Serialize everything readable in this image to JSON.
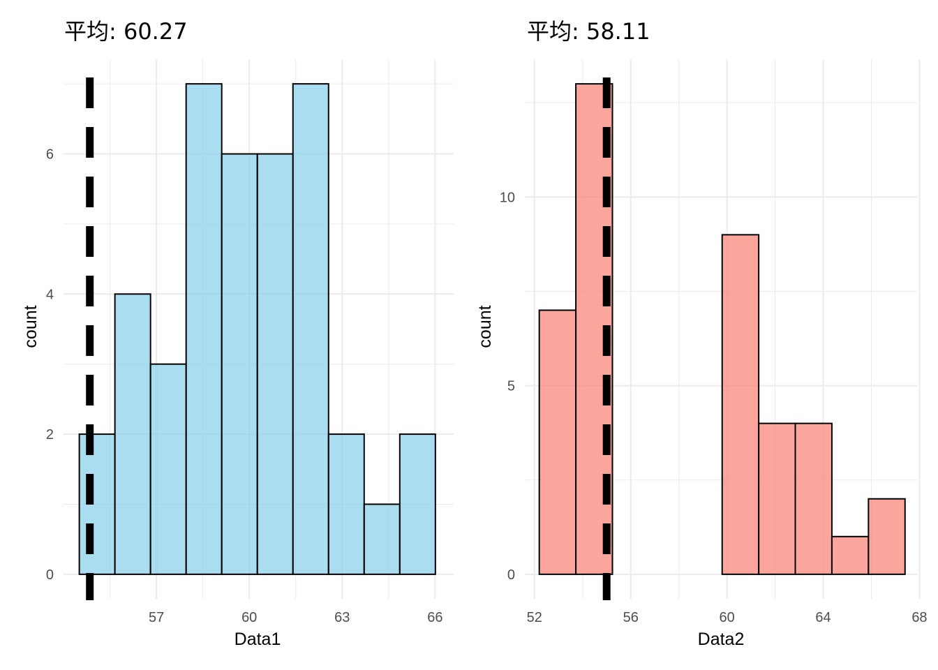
{
  "chart_data": [
    {
      "type": "bar",
      "title": "平均: 60.27",
      "xlabel": "Data1",
      "ylabel": "count",
      "fill_color": "#87CEEB",
      "xlim": [
        54.0,
        66.6
      ],
      "ylim": [
        -0.35,
        7.35
      ],
      "x_ticks": [
        57,
        60,
        63,
        66
      ],
      "y_ticks": [
        0,
        2,
        4,
        6
      ],
      "vline": 54.85,
      "grid": true,
      "bins": [
        {
          "x0": 54.51,
          "x1": 55.66,
          "count": 2
        },
        {
          "x0": 55.66,
          "x1": 56.81,
          "count": 4
        },
        {
          "x0": 56.81,
          "x1": 57.96,
          "count": 3
        },
        {
          "x0": 57.96,
          "x1": 59.11,
          "count": 7
        },
        {
          "x0": 59.11,
          "x1": 60.26,
          "count": 6
        },
        {
          "x0": 60.26,
          "x1": 61.41,
          "count": 6
        },
        {
          "x0": 61.41,
          "x1": 62.56,
          "count": 7
        },
        {
          "x0": 62.56,
          "x1": 63.71,
          "count": 2
        },
        {
          "x0": 63.71,
          "x1": 64.86,
          "count": 1
        },
        {
          "x0": 64.86,
          "x1": 66.01,
          "count": 2
        }
      ]
    },
    {
      "type": "bar",
      "title": "平均: 58.11",
      "xlabel": "Data2",
      "ylabel": "count",
      "fill_color": "#FA8072",
      "xlim": [
        51.6,
        67.9
      ],
      "ylim": [
        -0.65,
        13.65
      ],
      "x_ticks": [
        52,
        56,
        60,
        64,
        68
      ],
      "y_ticks": [
        0,
        5,
        10
      ],
      "vline": 55.0,
      "grid": true,
      "bins": [
        {
          "x0": 52.2,
          "x1": 53.72,
          "count": 7
        },
        {
          "x0": 53.72,
          "x1": 55.24,
          "count": 13
        },
        {
          "x0": 55.24,
          "x1": 56.76,
          "count": 0
        },
        {
          "x0": 56.76,
          "x1": 58.28,
          "count": 0
        },
        {
          "x0": 58.28,
          "x1": 59.8,
          "count": 0
        },
        {
          "x0": 59.8,
          "x1": 61.32,
          "count": 9
        },
        {
          "x0": 61.32,
          "x1": 62.84,
          "count": 4
        },
        {
          "x0": 62.84,
          "x1": 64.36,
          "count": 4
        },
        {
          "x0": 64.36,
          "x1": 65.88,
          "count": 1
        },
        {
          "x0": 65.88,
          "x1": 67.4,
          "count": 2
        }
      ]
    }
  ]
}
